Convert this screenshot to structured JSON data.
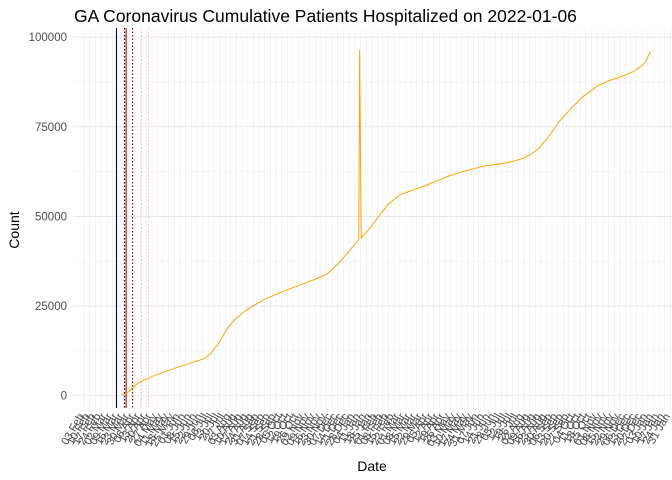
{
  "chart_data": {
    "type": "line",
    "title": "GA Coronavirus Cumulative Patients Hospitalized on 2022-01-06",
    "xlabel": "Date",
    "ylabel": "Count",
    "ylim": [
      -4000,
      102000
    ],
    "xlim": [
      "2020-02-03",
      "2022-01-31"
    ],
    "yticks": [
      0,
      25000,
      50000,
      75000,
      100000
    ],
    "ytick_labels": [
      "0",
      "25000",
      "50000",
      "75000",
      "100000"
    ],
    "xtick_step_days": 7,
    "xtick_first": "2020-02-03",
    "xtick_last": "2022-01-31",
    "xtick_label_pattern": "%d %b",
    "grid": true,
    "legend": "none",
    "series": [
      {
        "color": "#FFA500",
        "points": [
          [
            "2020-03-20",
            200
          ],
          [
            "2020-03-27",
            700
          ],
          [
            "2020-04-03",
            2200
          ],
          [
            "2020-04-10",
            3500
          ],
          [
            "2020-04-17",
            4300
          ],
          [
            "2020-04-24",
            5000
          ],
          [
            "2020-05-01",
            5700
          ],
          [
            "2020-05-15",
            6800
          ],
          [
            "2020-06-01",
            8200
          ],
          [
            "2020-06-15",
            9200
          ],
          [
            "2020-07-01",
            10300
          ],
          [
            "2020-07-10",
            12000
          ],
          [
            "2020-07-20",
            15000
          ],
          [
            "2020-07-29",
            18500
          ],
          [
            "2020-08-07",
            21000
          ],
          [
            "2020-08-20",
            23500
          ],
          [
            "2020-09-01",
            25200
          ],
          [
            "2020-09-15",
            27000
          ],
          [
            "2020-10-01",
            28500
          ],
          [
            "2020-10-15",
            29800
          ],
          [
            "2020-11-01",
            31200
          ],
          [
            "2020-11-15",
            32400
          ],
          [
            "2020-12-01",
            34000
          ],
          [
            "2020-12-06",
            35000
          ],
          [
            "2020-12-15",
            37000
          ],
          [
            "2020-12-25",
            39500
          ],
          [
            "2021-01-05",
            42500
          ],
          [
            "2021-01-09",
            43600
          ],
          [
            "2021-01-10",
            96500
          ],
          [
            "2021-01-11",
            70000
          ],
          [
            "2021-01-12",
            44000
          ],
          [
            "2021-01-20",
            46000
          ],
          [
            "2021-02-01",
            49500
          ],
          [
            "2021-02-15",
            53500
          ],
          [
            "2021-03-01",
            56000
          ],
          [
            "2021-03-15",
            57200
          ],
          [
            "2021-04-01",
            58500
          ],
          [
            "2021-04-15",
            59800
          ],
          [
            "2021-05-01",
            61300
          ],
          [
            "2021-05-15",
            62300
          ],
          [
            "2021-06-01",
            63300
          ],
          [
            "2021-06-15",
            64100
          ],
          [
            "2021-07-01",
            64600
          ],
          [
            "2021-07-15",
            65100
          ],
          [
            "2021-08-01",
            66200
          ],
          [
            "2021-08-10",
            67200
          ],
          [
            "2021-08-20",
            68800
          ],
          [
            "2021-09-01",
            72000
          ],
          [
            "2021-09-15",
            76500
          ],
          [
            "2021-10-01",
            80500
          ],
          [
            "2021-10-15",
            83500
          ],
          [
            "2021-11-01",
            86300
          ],
          [
            "2021-11-15",
            87800
          ],
          [
            "2021-12-01",
            89000
          ],
          [
            "2021-12-15",
            90300
          ],
          [
            "2021-12-27",
            92000
          ],
          [
            "2022-01-01",
            93500
          ],
          [
            "2022-01-06",
            96000
          ]
        ]
      }
    ],
    "vlines": [
      {
        "date": "2020-03-14",
        "color": "#00008B",
        "style": "solid"
      },
      {
        "date": "2020-03-24",
        "color": "#000000",
        "style": "dotted"
      },
      {
        "date": "2020-03-26",
        "color": "#CC0000",
        "style": "solid"
      },
      {
        "date": "2020-04-03",
        "color": "#8B0000",
        "style": "dotted"
      },
      {
        "date": "2020-04-14",
        "color": "#FFB6C1",
        "style": "dotted"
      },
      {
        "date": "2020-04-23",
        "color": "#FFB6C1",
        "style": "dotted"
      }
    ]
  }
}
